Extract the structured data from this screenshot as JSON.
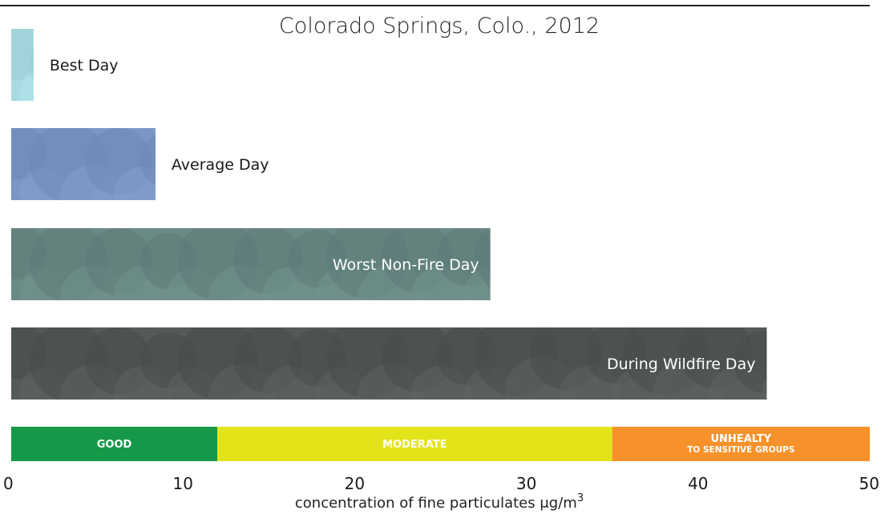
{
  "chart_data": {
    "type": "bar",
    "orientation": "horizontal",
    "title": "Colorado Springs, Colo., 2012",
    "categories": [
      "Best Day",
      "Average Day",
      "Worst Non-Fire Day",
      "During Wildfire Day"
    ],
    "values": [
      1.3,
      8.4,
      27.9,
      44.0
    ],
    "bar_colors": [
      "#a8dbe2",
      "#7b96c4",
      "#6a8a86",
      "#545a58"
    ],
    "label_inside": [
      false,
      false,
      true,
      true
    ],
    "xlim": [
      0,
      50
    ],
    "x_ticks": [
      0,
      10,
      20,
      30,
      40,
      50
    ],
    "xlabel": "concentration of fine particulates μg/m",
    "xlabel_superscript": "3",
    "grid": false,
    "bands": [
      {
        "label": "GOOD",
        "sub": "",
        "from": 0,
        "to": 12,
        "color": "#159848",
        "text_color": "#ffffff"
      },
      {
        "label": "MODERATE",
        "sub": "",
        "from": 12,
        "to": 35,
        "color": "#e3e31a",
        "text_color": "#ffffff"
      },
      {
        "label": "UNHEALTY",
        "sub": "TO SENSITIVE GROUPS",
        "from": 35,
        "to": 50,
        "color": "#f7922b",
        "text_color": "#ffffff"
      }
    ]
  }
}
